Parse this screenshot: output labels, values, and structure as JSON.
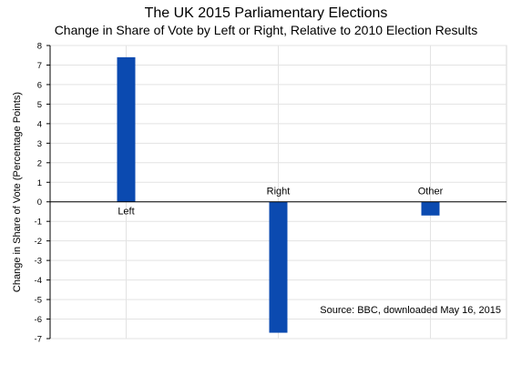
{
  "chart_data": {
    "type": "bar",
    "title": "The UK 2015 Parliamentary Elections",
    "subtitle": "Change in Share of Vote by Left or Right, Relative to 2010 Election Results",
    "ylabel": "Change in Share of Vote (Percentage Points)",
    "xlabel": "",
    "categories": [
      "Left",
      "Right",
      "Other"
    ],
    "values": [
      7.4,
      -6.7,
      -0.7
    ],
    "ylim": [
      -7,
      8
    ],
    "yticks": [
      8,
      7,
      6,
      5,
      4,
      3,
      2,
      1,
      0,
      -1,
      -2,
      -3,
      -4,
      -5,
      -6,
      -7
    ],
    "grid": true,
    "bar_color": "#0b4ab0",
    "annotation": "Source:  BBC, downloaded May 16, 2015"
  }
}
